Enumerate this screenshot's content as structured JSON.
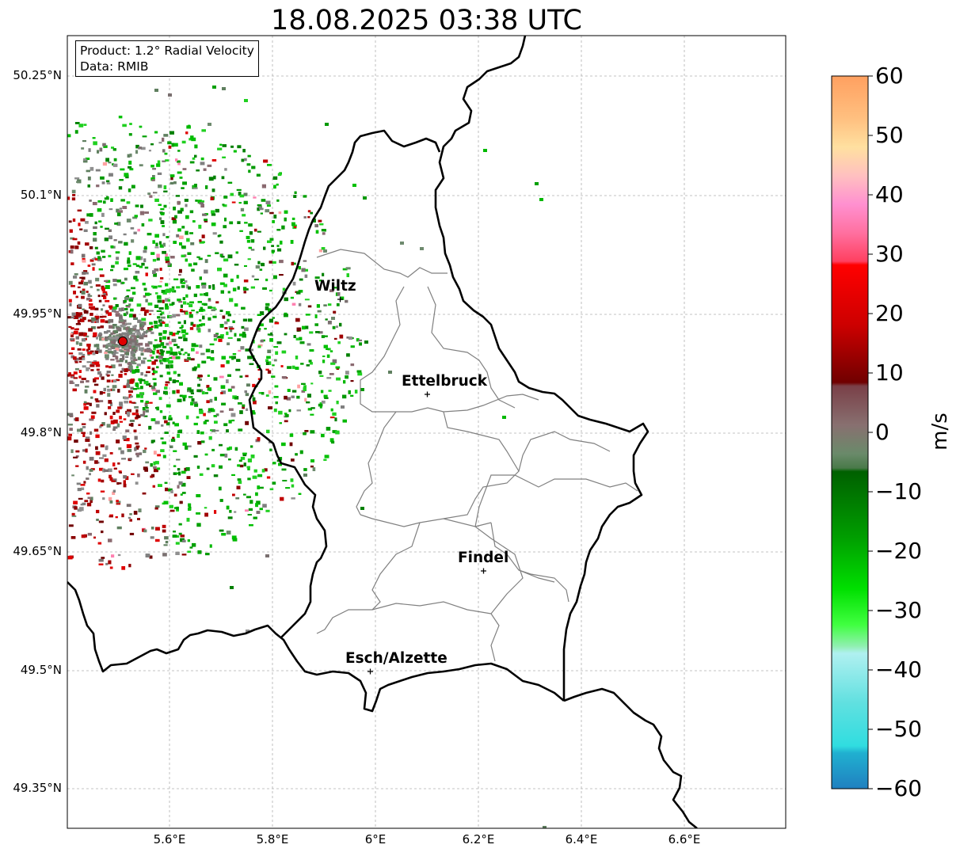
{
  "title": "18.08.2025 03:38 UTC",
  "info": {
    "product": "Product: 1.2° Radial Velocity",
    "data": "Data: RMIB"
  },
  "axes": {
    "lat_labels": [
      "50.25°N",
      "50.1°N",
      "49.95°N",
      "49.8°N",
      "49.65°N",
      "49.5°N",
      "49.35°N"
    ],
    "lon_labels": [
      "5.6°E",
      "5.8°E",
      "6°E",
      "6.2°E",
      "6.4°E",
      "6.6°E"
    ],
    "grid": true
  },
  "colorbar": {
    "unit": "m/s",
    "ticks": [
      "60",
      "50",
      "40",
      "30",
      "20",
      "10",
      "0",
      "−10",
      "−20",
      "−30",
      "−40",
      "−50",
      "−60"
    ],
    "range": [
      -60,
      60
    ]
  },
  "cities": [
    {
      "name": "Wiltz"
    },
    {
      "name": "Ettelbruck"
    },
    {
      "name": "Findel"
    },
    {
      "name": "Esch/Alzette"
    }
  ],
  "colors": {
    "border": "#000000",
    "cantons": "#808080",
    "grid": "#b0b0b0",
    "radar_site": "#e00000"
  }
}
